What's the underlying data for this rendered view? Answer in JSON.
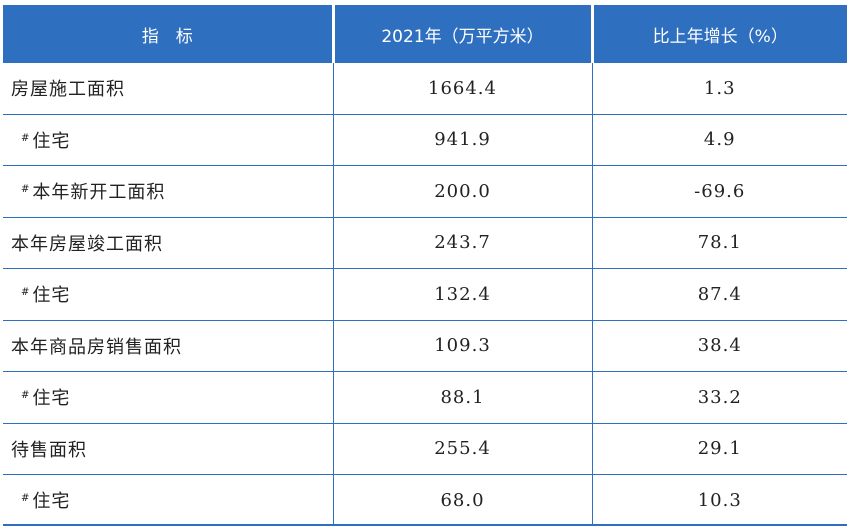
{
  "table": {
    "headers": [
      "指　标",
      "2021年（万平方米）",
      "比上年增长（%）"
    ],
    "rows": [
      {
        "name": "房屋施工面积",
        "sub": false,
        "prefix": "",
        "value": "1664.4",
        "growth": "1.3"
      },
      {
        "name": "住宅",
        "sub": true,
        "prefix": "#",
        "value": "941.9",
        "growth": "4.9"
      },
      {
        "name": "本年新开工面积",
        "sub": true,
        "prefix": "#",
        "value": "200.0",
        "growth": "-69.6"
      },
      {
        "name": "本年房屋竣工面积",
        "sub": false,
        "prefix": "",
        "value": "243.7",
        "growth": "78.1"
      },
      {
        "name": "住宅",
        "sub": true,
        "prefix": "#",
        "value": "132.4",
        "growth": "87.4"
      },
      {
        "name": "本年商品房销售面积",
        "sub": false,
        "prefix": "",
        "value": "109.3",
        "growth": "38.4"
      },
      {
        "name": "住宅",
        "sub": true,
        "prefix": "#",
        "value": "88.1",
        "growth": "33.2"
      },
      {
        "name": "待售面积",
        "sub": false,
        "prefix": "",
        "value": "255.4",
        "growth": "29.1"
      },
      {
        "name": "住宅",
        "sub": true,
        "prefix": "#",
        "value": "68.0",
        "growth": "10.3"
      }
    ]
  }
}
